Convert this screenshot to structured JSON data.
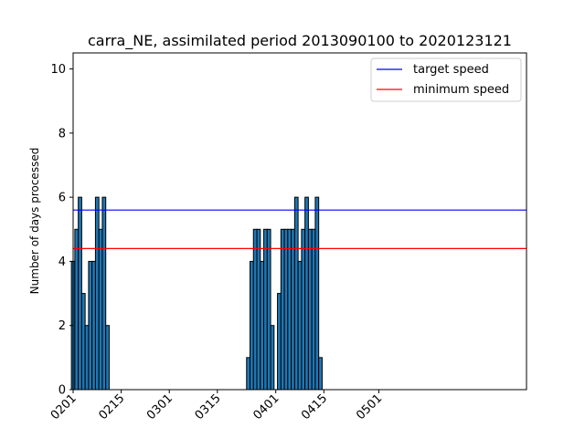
{
  "chart_data": {
    "type": "bar",
    "title": "carra_NE, assimilated period 2013090100 to 2020123121",
    "xlabel": "",
    "ylabel": "Number of days processed",
    "ylim": [
      0,
      10.5
    ],
    "yticks": [
      0,
      2,
      4,
      6,
      8,
      10
    ],
    "xlim": [
      "0201",
      "0613"
    ],
    "xticks": [
      "0201",
      "0215",
      "0301",
      "0315",
      "0401",
      "0415",
      "0501"
    ],
    "bar_color": "#1f77b4",
    "bar_edge_color": "#000000",
    "bars": [
      {
        "x": "0201",
        "value": 4
      },
      {
        "x": "0202",
        "value": 5
      },
      {
        "x": "0203",
        "value": 6
      },
      {
        "x": "0204",
        "value": 3
      },
      {
        "x": "0205",
        "value": 2
      },
      {
        "x": "0206",
        "value": 4
      },
      {
        "x": "0207",
        "value": 4
      },
      {
        "x": "0208",
        "value": 6
      },
      {
        "x": "0209",
        "value": 5
      },
      {
        "x": "0210",
        "value": 6
      },
      {
        "x": "0211",
        "value": 2
      },
      {
        "x": "0324",
        "value": 1
      },
      {
        "x": "0325",
        "value": 4
      },
      {
        "x": "0326",
        "value": 5
      },
      {
        "x": "0327",
        "value": 5
      },
      {
        "x": "0328",
        "value": 4
      },
      {
        "x": "0329",
        "value": 5
      },
      {
        "x": "0330",
        "value": 5
      },
      {
        "x": "0331",
        "value": 2
      },
      {
        "x": "0402",
        "value": 3
      },
      {
        "x": "0403",
        "value": 5
      },
      {
        "x": "0404",
        "value": 5
      },
      {
        "x": "0405",
        "value": 5
      },
      {
        "x": "0406",
        "value": 5
      },
      {
        "x": "0407",
        "value": 6
      },
      {
        "x": "0408",
        "value": 4
      },
      {
        "x": "0409",
        "value": 5
      },
      {
        "x": "0410",
        "value": 6
      },
      {
        "x": "0411",
        "value": 5
      },
      {
        "x": "0412",
        "value": 5
      },
      {
        "x": "0413",
        "value": 6
      },
      {
        "x": "0414",
        "value": 1
      }
    ],
    "reference_lines": [
      {
        "name": "target speed",
        "value": 5.6,
        "color": "#0000ff"
      },
      {
        "name": "minimum speed",
        "value": 4.4,
        "color": "#ff0000"
      }
    ],
    "legend_position": "top-right",
    "grid": false
  }
}
